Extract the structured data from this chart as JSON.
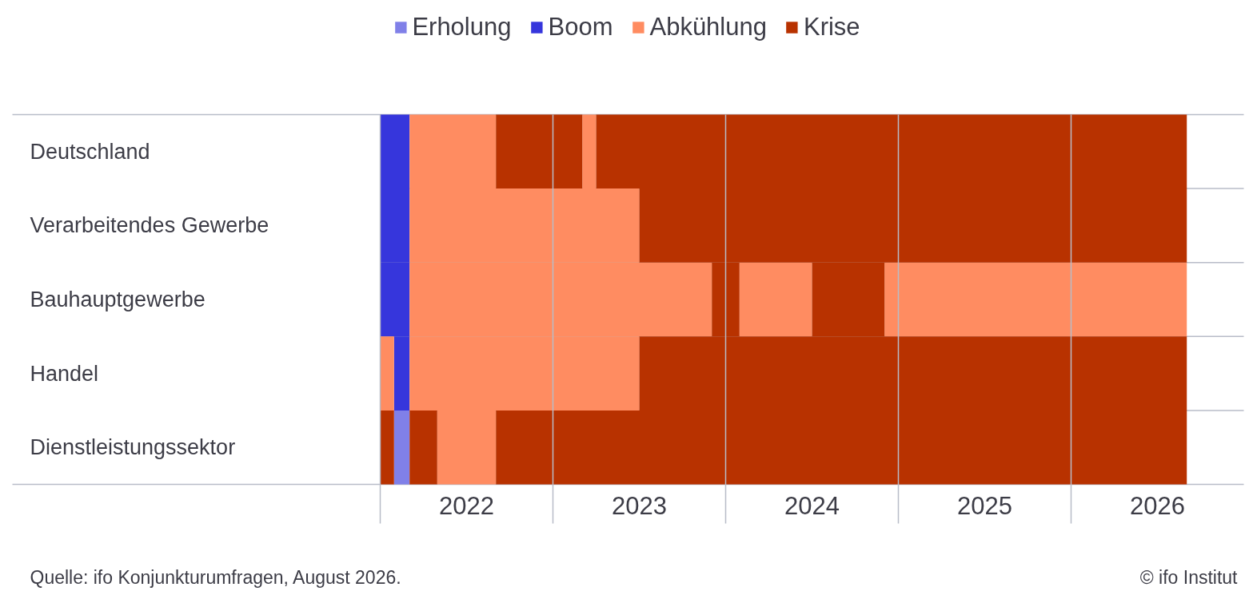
{
  "chart_data": {
    "type": "bar",
    "orientation": "horizontal",
    "categories": [
      "Deutschland",
      "Verarbeitendes Gewerbe",
      "Bauhauptgewerbe",
      "Handel",
      "Dienstleistungssektor"
    ],
    "xlim": [
      2022,
      2027
    ],
    "xticks": [
      {
        "value": 2022,
        "label": null
      },
      {
        "value": 2022.5,
        "label": "2022"
      },
      {
        "value": 2023,
        "label": null
      },
      {
        "value": 2023.5,
        "label": "2023"
      },
      {
        "value": 2024,
        "label": null
      },
      {
        "value": 2024.5,
        "label": "2024"
      },
      {
        "value": 2025,
        "label": null
      },
      {
        "value": 2025.5,
        "label": "2025"
      },
      {
        "value": 2026,
        "label": null
      },
      {
        "value": 2026.5,
        "label": "2026"
      }
    ],
    "series": [
      {
        "name": "Erholung",
        "color": "#8080e8",
        "values": [
          null,
          null,
          null,
          null,
          0.09
        ],
        "base": [
          null,
          null,
          null,
          null,
          2022.08
        ]
      },
      {
        "name": "Boom",
        "color": "#3636dc",
        "values": [
          0.17,
          0.17,
          0.17,
          0.09,
          null
        ],
        "base": [
          2022,
          2022,
          2022,
          2022.08,
          null
        ]
      },
      {
        "name": "Abkühlung",
        "color": "#ff8c61",
        "values": [
          0.5,
          1.33,
          1.75,
          0.08,
          0.34
        ],
        "base": [
          2022.17,
          2022.17,
          2022.17,
          2022,
          2022.33
        ]
      },
      {
        "color": "#ff8c61",
        "values": [
          0.08,
          null,
          0.42,
          1.33,
          null
        ],
        "base": [
          2023.17,
          null,
          2024.08,
          2022.17,
          null
        ]
      },
      {
        "color": "#ff8c61",
        "values": [
          null,
          null,
          1.75,
          null,
          null
        ],
        "base": [
          null,
          null,
          2024.92,
          null,
          null
        ]
      },
      {
        "name": "Krise",
        "color": "#b83200",
        "values": [
          0.5,
          3.17,
          0.16,
          3.17,
          0.08
        ],
        "base": [
          2022.67,
          2023.5,
          2023.92,
          2023.5,
          2022
        ]
      },
      {
        "color": "#b83200",
        "values": [
          3.42,
          null,
          0.42,
          null,
          0.16
        ],
        "base": [
          2023.25,
          null,
          2024.5,
          null,
          2022.17
        ]
      },
      {
        "color": "#b83200",
        "values": [
          null,
          null,
          null,
          null,
          4.0
        ],
        "base": [
          null,
          null,
          null,
          null,
          2022.67
        ]
      }
    ],
    "grid": true,
    "legend": "top",
    "annotations": [
      "Quelle: ifo Konjunkturumfragen, August 2026.",
      "© ifo Institut"
    ]
  }
}
